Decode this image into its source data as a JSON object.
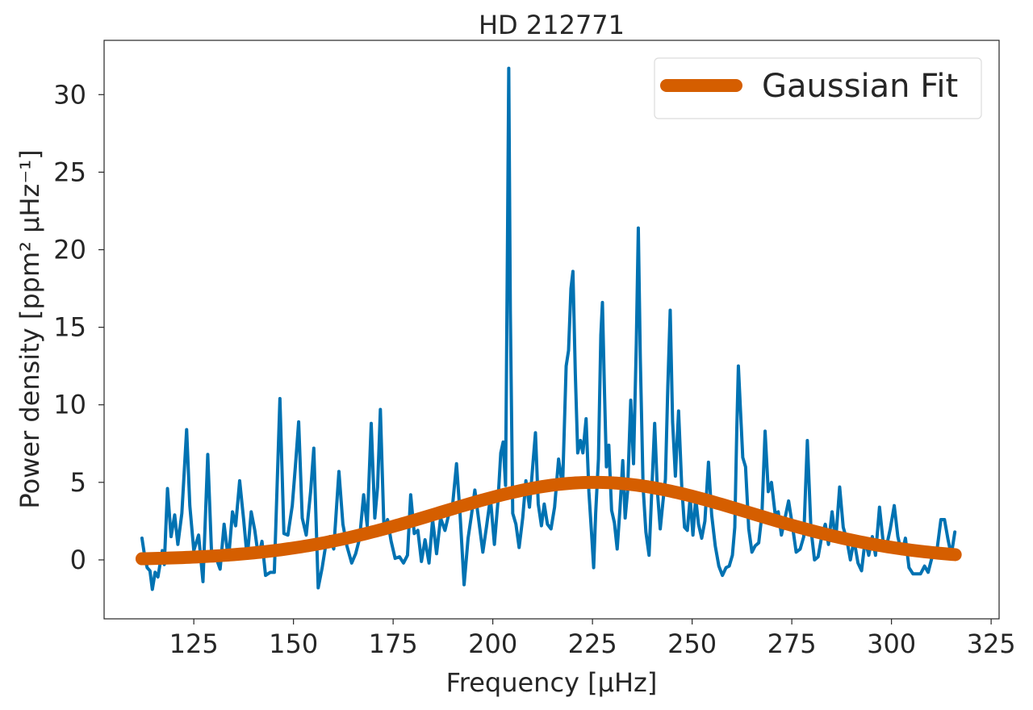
{
  "chart_data": {
    "type": "line",
    "title": "HD 212771",
    "xlabel": "Frequency [μHz]",
    "ylabel": "Power density [ppm² μHz⁻¹]",
    "xlim": [
      102.5,
      327
    ],
    "ylim": [
      -3.8,
      33.5
    ],
    "xticks": [
      125,
      150,
      175,
      200,
      225,
      250,
      275,
      300,
      325
    ],
    "yticks": [
      0,
      5,
      10,
      15,
      20,
      25,
      30
    ],
    "grid": false,
    "legend": {
      "placement": "top-right",
      "entries": [
        "Gaussian Fit"
      ]
    },
    "series": [
      {
        "color": "#0072b2",
        "points": [
          [
            112.0,
            1.4
          ],
          [
            112.7,
            0.2
          ],
          [
            113.3,
            -0.5
          ],
          [
            114.0,
            -0.7
          ],
          [
            114.6,
            -1.9
          ],
          [
            115.3,
            -0.8
          ],
          [
            116.0,
            -1.1
          ],
          [
            117.1,
            0.6
          ],
          [
            117.6,
            -0.3
          ],
          [
            118.4,
            4.6
          ],
          [
            119.3,
            1.5
          ],
          [
            120.2,
            2.9
          ],
          [
            121.0,
            1.0
          ],
          [
            122.0,
            3.0
          ],
          [
            123.2,
            8.4
          ],
          [
            124.0,
            3.5
          ],
          [
            125.0,
            0.6
          ],
          [
            126.2,
            1.6
          ],
          [
            127.3,
            -1.4
          ],
          [
            128.5,
            6.8
          ],
          [
            129.5,
            0.1
          ],
          [
            130.5,
            0.2
          ],
          [
            131.6,
            -0.6
          ],
          [
            132.6,
            2.3
          ],
          [
            133.7,
            0.0
          ],
          [
            134.7,
            3.1
          ],
          [
            135.5,
            2.2
          ],
          [
            136.5,
            5.1
          ],
          [
            137.5,
            2.6
          ],
          [
            138.4,
            0.1
          ],
          [
            139.4,
            3.1
          ],
          [
            140.3,
            1.9
          ],
          [
            141.2,
            0.2
          ],
          [
            142.1,
            1.2
          ],
          [
            143.0,
            -1.0
          ],
          [
            144.2,
            -0.8
          ],
          [
            145.2,
            -0.8
          ],
          [
            146.6,
            10.4
          ],
          [
            147.6,
            1.7
          ],
          [
            148.6,
            1.6
          ],
          [
            149.7,
            3.5
          ],
          [
            150.5,
            6.1
          ],
          [
            151.3,
            8.9
          ],
          [
            152.2,
            2.7
          ],
          [
            153.2,
            1.6
          ],
          [
            154.3,
            4.4
          ],
          [
            155.1,
            7.2
          ],
          [
            156.2,
            -1.8
          ],
          [
            157.2,
            -0.5
          ],
          [
            158.0,
            0.8
          ],
          [
            159.1,
            1.5
          ],
          [
            160.1,
            0.7
          ],
          [
            161.4,
            5.7
          ],
          [
            162.4,
            2.3
          ],
          [
            163.4,
            0.9
          ],
          [
            164.6,
            -0.2
          ],
          [
            165.6,
            0.4
          ],
          [
            166.6,
            1.4
          ],
          [
            167.6,
            4.2
          ],
          [
            168.5,
            2.2
          ],
          [
            169.5,
            8.8
          ],
          [
            170.4,
            2.7
          ],
          [
            171.1,
            4.7
          ],
          [
            171.8,
            9.7
          ],
          [
            172.7,
            2.0
          ],
          [
            173.6,
            2.6
          ],
          [
            174.5,
            1.2
          ],
          [
            175.5,
            0.1
          ],
          [
            176.6,
            0.2
          ],
          [
            177.6,
            -0.2
          ],
          [
            178.6,
            0.3
          ],
          [
            179.4,
            4.2
          ],
          [
            180.3,
            1.7
          ],
          [
            181.2,
            1.9
          ],
          [
            182.1,
            -0.1
          ],
          [
            183.0,
            1.3
          ],
          [
            184.0,
            -0.2
          ],
          [
            184.9,
            2.6
          ],
          [
            185.9,
            0.4
          ],
          [
            186.9,
            2.7
          ],
          [
            188.0,
            1.9
          ],
          [
            189.0,
            3.0
          ],
          [
            189.9,
            3.5
          ],
          [
            190.9,
            6.2
          ],
          [
            191.8,
            2.9
          ],
          [
            192.8,
            -1.6
          ],
          [
            193.8,
            1.4
          ],
          [
            194.6,
            2.8
          ],
          [
            195.5,
            4.5
          ],
          [
            196.4,
            2.7
          ],
          [
            197.5,
            0.5
          ],
          [
            198.4,
            2.1
          ],
          [
            199.4,
            4.0
          ],
          [
            200.4,
            1.0
          ],
          [
            201.3,
            3.8
          ],
          [
            202.0,
            6.9
          ],
          [
            202.6,
            7.6
          ],
          [
            203.2,
            4.8
          ],
          [
            203.7,
            21.0
          ],
          [
            204.0,
            31.7
          ],
          [
            204.4,
            16.0
          ],
          [
            205.0,
            3.0
          ],
          [
            205.8,
            2.3
          ],
          [
            206.6,
            0.8
          ],
          [
            207.5,
            2.7
          ],
          [
            208.3,
            5.1
          ],
          [
            209.2,
            3.4
          ],
          [
            210.0,
            6.0
          ],
          [
            210.7,
            8.2
          ],
          [
            211.4,
            3.6
          ],
          [
            212.2,
            2.2
          ],
          [
            212.9,
            3.6
          ],
          [
            213.7,
            2.3
          ],
          [
            214.6,
            2.0
          ],
          [
            215.5,
            3.4
          ],
          [
            216.5,
            6.5
          ],
          [
            217.5,
            4.7
          ],
          [
            218.4,
            12.5
          ],
          [
            219.0,
            13.5
          ],
          [
            219.6,
            17.5
          ],
          [
            220.1,
            18.6
          ],
          [
            220.7,
            12.0
          ],
          [
            221.3,
            6.9
          ],
          [
            222.0,
            7.7
          ],
          [
            222.6,
            6.9
          ],
          [
            223.4,
            9.1
          ],
          [
            224.1,
            4.4
          ],
          [
            224.8,
            1.6
          ],
          [
            225.3,
            -0.5
          ],
          [
            225.8,
            3.0
          ],
          [
            226.5,
            6.5
          ],
          [
            227.1,
            14.5
          ],
          [
            227.5,
            16.6
          ],
          [
            228.0,
            11.0
          ],
          [
            228.5,
            6.0
          ],
          [
            229.1,
            7.4
          ],
          [
            229.8,
            3.2
          ],
          [
            230.5,
            2.4
          ],
          [
            231.2,
            0.7
          ],
          [
            231.9,
            3.3
          ],
          [
            232.6,
            6.4
          ],
          [
            233.2,
            2.7
          ],
          [
            233.8,
            4.4
          ],
          [
            234.6,
            10.3
          ],
          [
            235.3,
            6.2
          ],
          [
            236.0,
            14.0
          ],
          [
            236.5,
            21.4
          ],
          [
            237.0,
            13.0
          ],
          [
            237.7,
            4.7
          ],
          [
            238.4,
            1.8
          ],
          [
            239.2,
            0.3
          ],
          [
            239.9,
            4.6
          ],
          [
            240.6,
            8.8
          ],
          [
            241.3,
            4.4
          ],
          [
            242.0,
            2.0
          ],
          [
            242.7,
            3.8
          ],
          [
            243.3,
            5.2
          ],
          [
            243.9,
            11.2
          ],
          [
            244.5,
            16.1
          ],
          [
            245.1,
            8.9
          ],
          [
            245.8,
            5.4
          ],
          [
            246.6,
            9.6
          ],
          [
            247.4,
            4.7
          ],
          [
            248.1,
            2.1
          ],
          [
            248.8,
            1.9
          ],
          [
            249.5,
            4.0
          ],
          [
            250.2,
            1.6
          ],
          [
            250.9,
            4.0
          ],
          [
            251.6,
            2.3
          ],
          [
            252.4,
            1.4
          ],
          [
            253.2,
            2.5
          ],
          [
            254.1,
            6.3
          ],
          [
            254.9,
            2.9
          ],
          [
            255.8,
            0.9
          ],
          [
            256.7,
            -0.4
          ],
          [
            257.6,
            -1.0
          ],
          [
            258.5,
            -0.5
          ],
          [
            259.3,
            -0.4
          ],
          [
            260.1,
            0.3
          ],
          [
            260.7,
            2.1
          ],
          [
            261.2,
            8.4
          ],
          [
            261.6,
            12.5
          ],
          [
            262.1,
            9.8
          ],
          [
            262.7,
            6.6
          ],
          [
            263.4,
            6.0
          ],
          [
            264.2,
            2.0
          ],
          [
            265.0,
            0.5
          ],
          [
            265.8,
            0.9
          ],
          [
            266.7,
            1.1
          ],
          [
            267.5,
            2.9
          ],
          [
            268.3,
            8.3
          ],
          [
            269.1,
            4.4
          ],
          [
            269.9,
            5.0
          ],
          [
            270.8,
            3.0
          ],
          [
            271.6,
            3.1
          ],
          [
            272.4,
            1.6
          ],
          [
            273.3,
            2.7
          ],
          [
            274.2,
            3.8
          ],
          [
            275.1,
            2.3
          ],
          [
            276.1,
            0.5
          ],
          [
            277.1,
            0.7
          ],
          [
            278.0,
            1.5
          ],
          [
            278.9,
            7.7
          ],
          [
            279.8,
            2.0
          ],
          [
            280.7,
            0.0
          ],
          [
            281.6,
            0.2
          ],
          [
            282.5,
            1.5
          ],
          [
            283.4,
            2.3
          ],
          [
            284.2,
            1.0
          ],
          [
            285.1,
            3.1
          ],
          [
            286.0,
            1.2
          ],
          [
            287.0,
            4.7
          ],
          [
            287.9,
            2.1
          ],
          [
            288.8,
            1.3
          ],
          [
            289.7,
            0.0
          ],
          [
            290.6,
            1.3
          ],
          [
            291.6,
            -0.2
          ],
          [
            292.5,
            -0.7
          ],
          [
            293.4,
            1.3
          ],
          [
            294.3,
            0.3
          ],
          [
            295.2,
            1.5
          ],
          [
            296.0,
            0.3
          ],
          [
            297.0,
            3.4
          ],
          [
            297.9,
            1.2
          ],
          [
            298.7,
            0.8
          ],
          [
            299.7,
            2.0
          ],
          [
            300.7,
            3.5
          ],
          [
            301.6,
            1.5
          ],
          [
            302.6,
            0.4
          ],
          [
            303.5,
            1.4
          ],
          [
            304.4,
            -0.5
          ],
          [
            305.4,
            -0.9
          ],
          [
            306.4,
            -0.9
          ],
          [
            307.3,
            -0.9
          ],
          [
            308.3,
            -0.4
          ],
          [
            309.2,
            -0.8
          ],
          [
            310.2,
            0.2
          ],
          [
            311.2,
            0.2
          ],
          [
            312.4,
            2.6
          ],
          [
            313.3,
            2.6
          ],
          [
            314.2,
            1.3
          ],
          [
            315.0,
            0.3
          ],
          [
            315.9,
            1.8
          ]
        ]
      },
      {
        "name": "Gaussian Fit",
        "color": "#d55e00",
        "model": "gaussian",
        "amplitude": 5.0,
        "center": 225.5,
        "sigma": 39.0,
        "x_range": [
          112,
          316
        ]
      }
    ]
  }
}
